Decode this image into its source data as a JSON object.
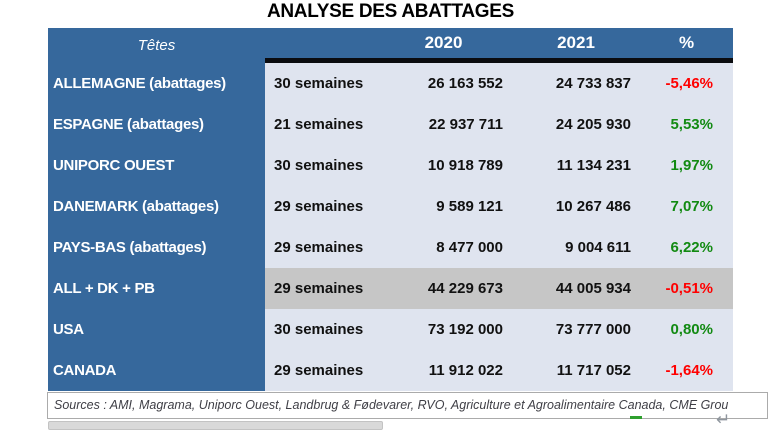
{
  "title": "ANALYSE DES ABATTAGES",
  "colors": {
    "header-blue": "#36689C",
    "row-light": "#DFE4EF",
    "row-gray": "#C6C6C6",
    "positive": "#128A12",
    "negative": "#FF0000"
  },
  "table": {
    "headers": {
      "col1": "Têtes",
      "col2": "",
      "col3": "2020",
      "col4": "2021",
      "col5": "%"
    },
    "rows": [
      {
        "name": "ALLEMAGNE (abattages)",
        "weeks": "30 semaines",
        "y2020": "26 163 552",
        "y2021": "24 733 837",
        "pct": "-5,46%",
        "trend": "neg",
        "highlight": "normal"
      },
      {
        "name": "ESPAGNE (abattages)",
        "weeks": "21 semaines",
        "y2020": "22 937 711",
        "y2021": "24 205 930",
        "pct": "5,53%",
        "trend": "pos",
        "highlight": "normal"
      },
      {
        "name": "UNIPORC OUEST",
        "weeks": "30 semaines",
        "y2020": "10 918 789",
        "y2021": "11 134 231",
        "pct": "1,97%",
        "trend": "pos",
        "highlight": "normal"
      },
      {
        "name": "DANEMARK (abattages)",
        "weeks": "29 semaines",
        "y2020": "9 589 121",
        "y2021": "10 267 486",
        "pct": "7,07%",
        "trend": "pos",
        "highlight": "normal"
      },
      {
        "name": "PAYS-BAS (abattages)",
        "weeks": "29 semaines",
        "y2020": "8 477 000",
        "y2021": "9 004 611",
        "pct": "6,22%",
        "trend": "pos",
        "highlight": "normal"
      },
      {
        "name": "ALL + DK + PB",
        "weeks": "29 semaines",
        "y2020": "44 229 673",
        "y2021": "44 005 934",
        "pct": "-0,51%",
        "trend": "neg",
        "highlight": "gray"
      },
      {
        "name": "USA",
        "weeks": "30 semaines",
        "y2020": "73 192 000",
        "y2021": "73 777 000",
        "pct": "0,80%",
        "trend": "pos",
        "highlight": "normal"
      },
      {
        "name": "CANADA",
        "weeks": "29 semaines",
        "y2020": "11 912 022",
        "y2021": "11 717 052",
        "pct": "-1,64%",
        "trend": "neg",
        "highlight": "normal"
      }
    ]
  },
  "footer": {
    "sources": "Sources : AMI, Magrama, Uniporc Ouest, Landbrug & Fødevarer, RVO, Agriculture et Agroalimentaire Canada, CME Grou",
    "return_mark": "↵"
  }
}
